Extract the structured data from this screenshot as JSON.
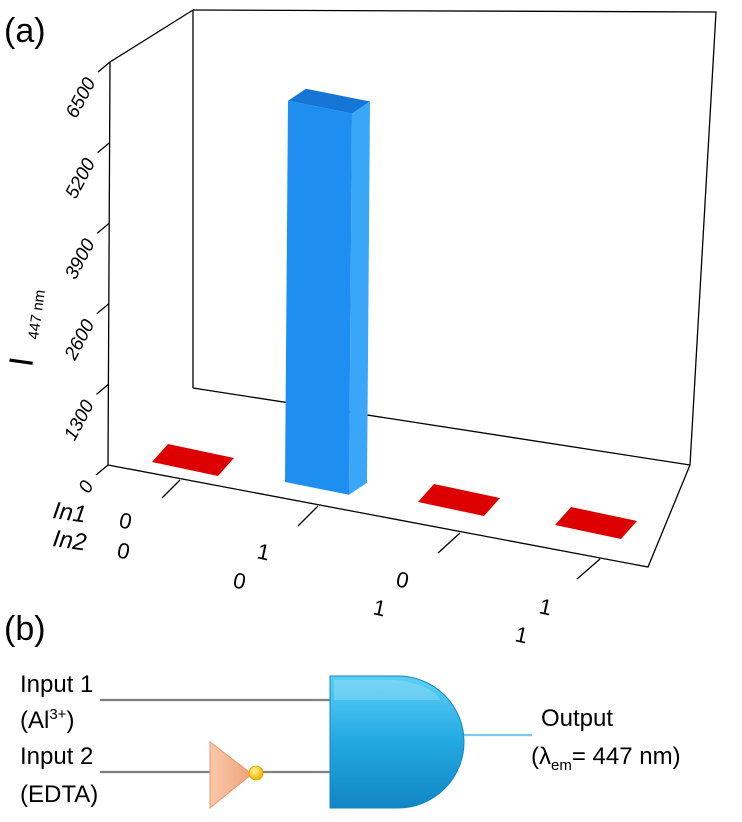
{
  "panel_a_label": "(a)",
  "panel_b_label": "(b)",
  "chart_data": {
    "type": "bar",
    "ylabel_main": "I",
    "ylabel_sub": "447 nm",
    "ylim": [
      0,
      6500
    ],
    "yticks": [
      "0",
      "1300",
      "2600",
      "3900",
      "5200",
      "6500"
    ],
    "row_labels": [
      "In1",
      "In2"
    ],
    "categories": [
      {
        "in1": "0",
        "in2": "0"
      },
      {
        "in1": "1",
        "in2": "0"
      },
      {
        "in1": "0",
        "in2": "1"
      },
      {
        "in1": "1",
        "in2": "1"
      }
    ],
    "values": [
      60,
      6150,
      60,
      60
    ],
    "colors": {
      "high": "#1e90ff",
      "low": "#dd0000"
    }
  },
  "logic": {
    "input1_label": "Input 1",
    "input1_species_pre": "(Al",
    "input1_species_sup": "3+",
    "input1_species_post": ")",
    "input2_label": "Input 2",
    "input2_species": "(EDTA)",
    "output_label": "Output",
    "output_pre": "(λ",
    "output_sub": "em",
    "output_post": "= 447 nm)",
    "gate_type": "AND gate with inverted input 2",
    "colors": {
      "gate": "#29aee6",
      "inverter": "#f5b690",
      "bubble": "#ffcc00",
      "output_line": "#7ec8e8"
    }
  }
}
